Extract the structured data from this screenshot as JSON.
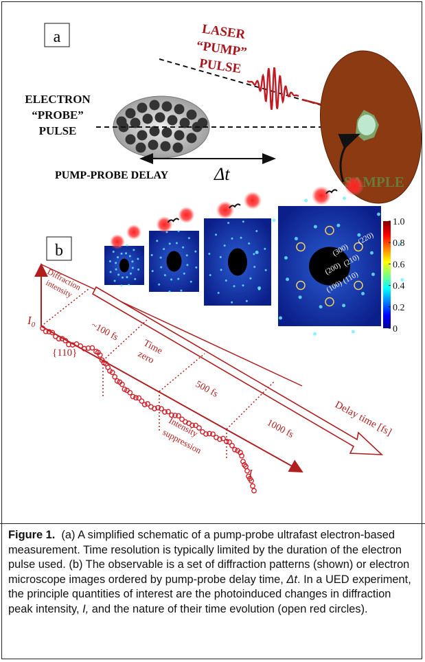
{
  "panel_a": {
    "label": "a",
    "laser_text": [
      "LASER",
      "“PUMP”",
      "PULSE"
    ],
    "electron_text": [
      "ELECTRON",
      "“PROBE”",
      "PULSE"
    ],
    "delay_label": "PUMP-PROBE DELAY",
    "delay_symbol": "Δt",
    "sample_label": "SAMPLE"
  },
  "panel_b": {
    "label": "b",
    "colorbar_ticks": [
      "1.0",
      "0.8",
      "0.6",
      "0.4",
      "0.2",
      "0"
    ],
    "miller_indices": [
      "(300)",
      "(220)",
      "(200)",
      "(210)",
      "(100)",
      "(110)"
    ],
    "y_axis_label": [
      "Diffraction",
      "intensity"
    ],
    "i0_symbol": "I",
    "i0_subscript": "0",
    "peak_label": "{110}",
    "time_labels": [
      "~100 fs",
      "Time",
      "zero",
      "500 fs",
      "1000 fs"
    ],
    "suppression_label": [
      "Intensity",
      "suppression"
    ],
    "delay_axis_label": "Delay time [fs]",
    "intensity_symbol": "I"
  },
  "caption": {
    "label": "Figure 1.",
    "parts": [
      "(a) A simplified schematic of a pump-probe ultrafast electron-based measurement. Time resolution is typically limited by the duration of the electron pulse used. (b) The observable is a set of diffraction patterns (shown) or electron microscope images ordered by pump-probe delay time, ",
      "Δt",
      ". In a UED experiment, the principle quantities of interest are the photoinduced changes in diffraction peak intensity, ",
      "I,",
      " and the nature of their time evolution (open red circles)."
    ]
  }
}
